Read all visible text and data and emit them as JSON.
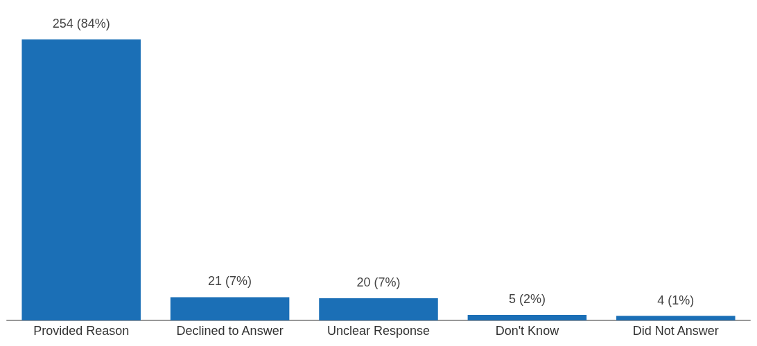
{
  "chart_data": {
    "type": "bar",
    "categories": [
      "Provided Reason",
      "Declined to Answer",
      "Unclear Response",
      "Don't Know",
      "Did Not Answer"
    ],
    "values": [
      254,
      21,
      20,
      5,
      4
    ],
    "value_labels": [
      "254 (84%)",
      "21 (7%)",
      "20 (7%)",
      "5 (2%)",
      "4 (1%)"
    ],
    "color": "#1b6fb6"
  }
}
